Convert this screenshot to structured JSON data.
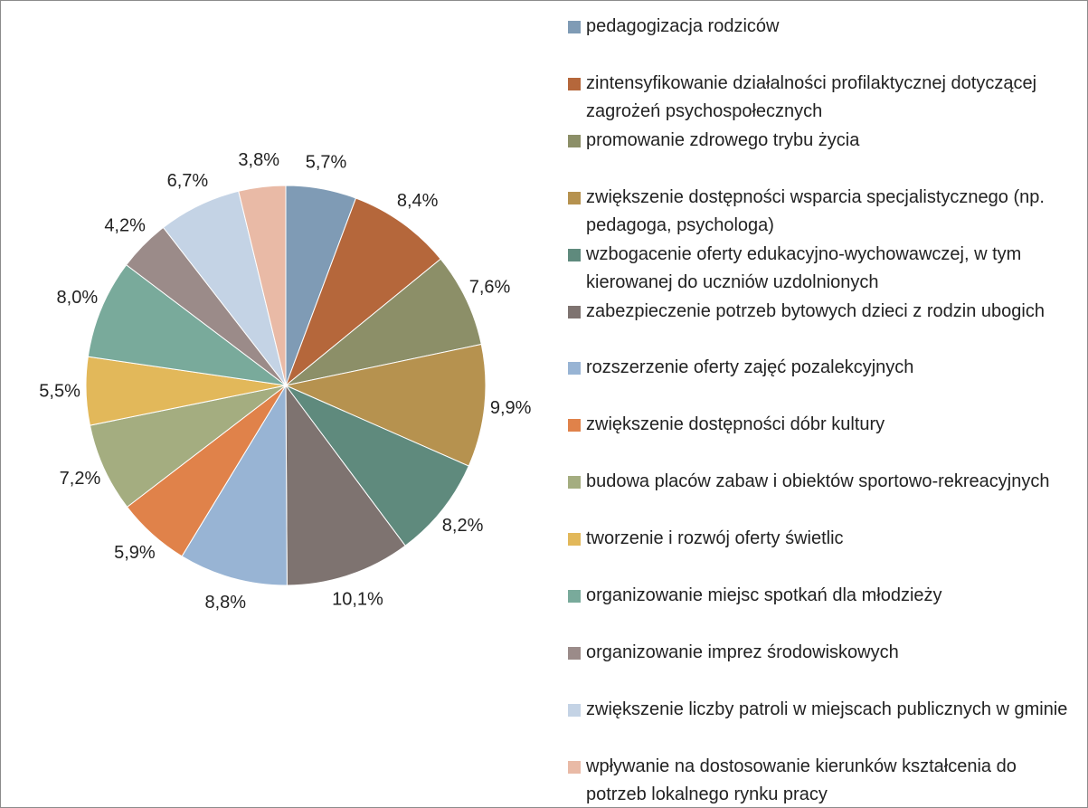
{
  "chart_data": {
    "type": "pie",
    "categories": [
      "pedagogizacja rodziców",
      "zintensyfikowanie działalności profilaktycznej dotyczącej zagrożeń psychospołecznych",
      "promowanie zdrowego trybu życia",
      "zwiększenie dostępności wsparcia specjalistycznego (np. pedagoga, psychologa)",
      "wzbogacenie oferty edukacyjno-wychowawczej, w tym kierowanej do uczniów uzdolnionych",
      "zabezpieczenie potrzeb bytowych dzieci z rodzin ubogich",
      "rozszerzenie oferty zajęć pozalekcyjnych",
      "zwiększenie dostępności dóbr kultury",
      "budowa placów zabaw i obiektów sportowo-rekreacyjnych",
      "tworzenie i rozwój oferty świetlic",
      "organizowanie miejsc spotkań dla młodzieży",
      "organizowanie imprez środowiskowych",
      "zwiększenie liczby patroli w miejscach publicznych w gminie",
      "wpływanie na dostosowanie kierunków kształcenia do potrzeb lokalnego rynku pracy"
    ],
    "values": [
      5.7,
      8.4,
      7.6,
      9.9,
      8.2,
      10.1,
      8.8,
      5.9,
      7.2,
      5.5,
      8.0,
      4.2,
      6.7,
      3.8
    ],
    "value_labels": [
      "5,7%",
      "8,4%",
      "7,6%",
      "9,9%",
      "8,2%",
      "10,1%",
      "8,8%",
      "5,9%",
      "7,2%",
      "5,5%",
      "8,0%",
      "4,2%",
      "6,7%",
      "3,8%"
    ],
    "colors": [
      "#7f9bb5",
      "#b5673b",
      "#8c8f68",
      "#b6924f",
      "#5f8a7d",
      "#7e7370",
      "#98b4d4",
      "#e0824a",
      "#a4ad80",
      "#e2b85a",
      "#79aa9b",
      "#9b8b89",
      "#c4d3e5",
      "#e9baa6"
    ],
    "legend": "right"
  }
}
